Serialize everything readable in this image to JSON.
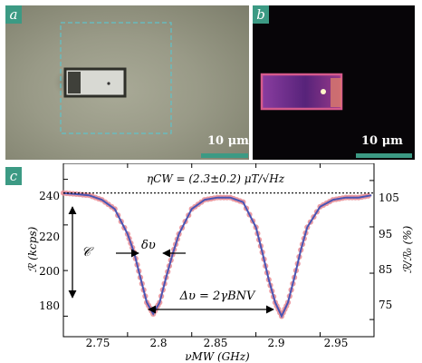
{
  "panel_a": {
    "label": "a",
    "scale_text": "10 μm"
  },
  "panel_b": {
    "label": "b",
    "scale_text": "10 μm"
  },
  "panel_c": {
    "label": "c"
  },
  "chart_data": {
    "type": "line",
    "x": [
      2.75,
      2.76,
      2.77,
      2.78,
      2.79,
      2.8,
      2.805,
      2.81,
      2.815,
      2.82,
      2.825,
      2.83,
      2.835,
      2.84,
      2.85,
      2.86,
      2.87,
      2.88,
      2.89,
      2.9,
      2.905,
      2.91,
      2.915,
      2.92,
      2.925,
      2.93,
      2.935,
      2.94,
      2.95,
      2.96,
      2.97,
      2.98,
      2.99
    ],
    "series": [
      {
        "values": [
          234,
          233.5,
          233,
          231,
          227,
          216,
          208,
          197,
          186,
          181,
          186,
          197,
          207,
          216,
          227,
          231,
          232,
          232,
          230,
          219,
          208,
          196,
          186,
          180,
          186,
          197,
          209,
          219,
          228,
          231,
          232,
          232,
          233
        ]
      }
    ],
    "xlabel": "νMW (GHz)",
    "ylabel": "ℛ (kcps)",
    "y2label": "ℛ/ℛ₀ (%)",
    "xticks": [
      "2.75",
      "2.8",
      "2.85",
      "2.9",
      "2.95"
    ],
    "yticks": [
      "180",
      "200",
      "220",
      "240"
    ],
    "y2ticks": [
      "75",
      "85",
      "95",
      "105"
    ],
    "xlim": [
      2.75,
      2.992
    ],
    "ylim": [
      171,
      247
    ],
    "y2lim": [
      71.3,
      108.7
    ],
    "baseline": 234,
    "annotations": {
      "sensitivity": "ηCW = (2.3±0.2) μT/√Hz",
      "contrast": "𝒞",
      "linewidth": "δυ",
      "splitting": "Δυ = 2γBNV"
    },
    "colors": {
      "data": "#e88c94",
      "fit": "#4a55b4",
      "accent": "#3c9a84"
    }
  }
}
